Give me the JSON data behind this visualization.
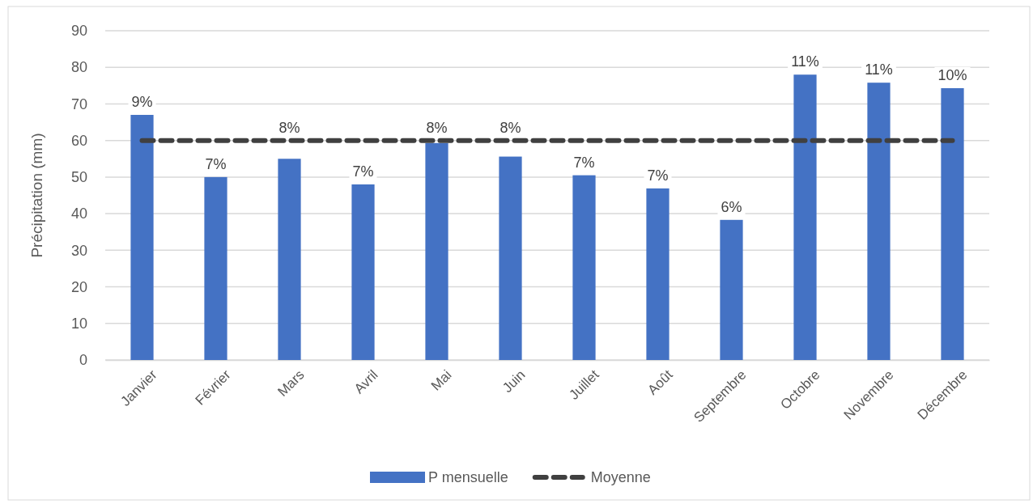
{
  "chart_data": {
    "type": "bar",
    "ylabel": "Précipitation (mm)",
    "categories": [
      "Janvier",
      "Février",
      "Mars",
      "Avril",
      "Mai",
      "Juin",
      "Juillet",
      "Août",
      "Septembre",
      "Octobre",
      "Novembre",
      "Décembre"
    ],
    "series": [
      {
        "name": "P mensuelle",
        "color": "#4472c4",
        "values": [
          67,
          50,
          55,
          48,
          59.3,
          55.6,
          50.5,
          46.9,
          38.3,
          78,
          75.8,
          74.3
        ]
      },
      {
        "name": "Moyenne",
        "type": "line",
        "color": "#404040",
        "line_style": "dashed",
        "values": [
          60,
          60,
          60,
          60,
          60,
          60,
          60,
          60,
          60,
          60,
          60,
          60
        ]
      }
    ],
    "annotations": [
      {
        "text": "9%",
        "x": "Janvier",
        "y": 67
      },
      {
        "text": "7%",
        "x": "Février",
        "y": 50
      },
      {
        "text": "8%",
        "x": "Mars",
        "y": 55
      },
      {
        "text": "7%",
        "x": "Avril",
        "y": 48
      },
      {
        "text": "8%",
        "x": "Mai",
        "y": 59.3
      },
      {
        "text": "8%",
        "x": "Juin",
        "y": 55.6
      },
      {
        "text": "7%",
        "x": "Juillet",
        "y": 50.5
      },
      {
        "text": "7%",
        "x": "Août",
        "y": 46.9
      },
      {
        "text": "6%",
        "x": "Septembre",
        "y": 38.3
      },
      {
        "text": "11%",
        "x": "Octobre",
        "y": 78
      },
      {
        "text": "11%",
        "x": "Novembre",
        "y": 75.8
      },
      {
        "text": "10%",
        "x": "Décembre",
        "y": 74.3
      }
    ],
    "ylim": [
      0,
      90
    ],
    "yticks": [
      0,
      10,
      20,
      30,
      40,
      50,
      60,
      70,
      80,
      90
    ],
    "grid": "y",
    "legend": "bottom"
  }
}
